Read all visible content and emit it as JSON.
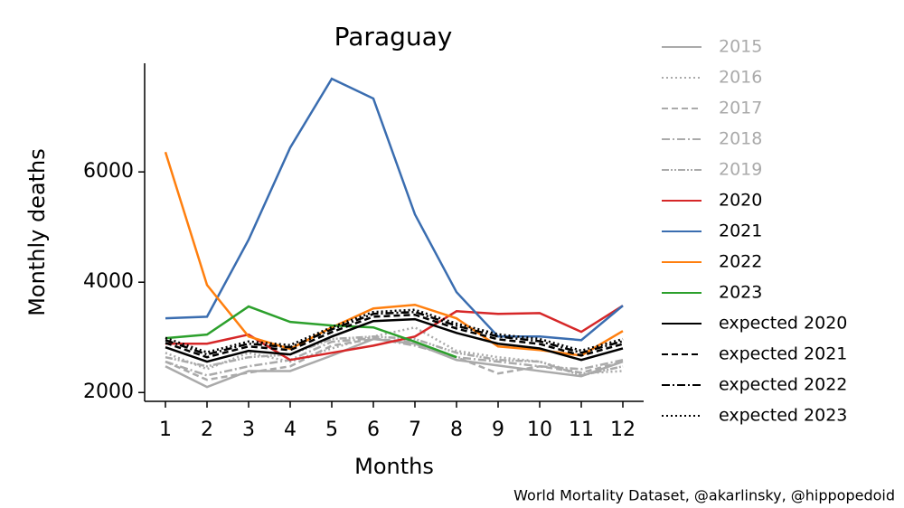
{
  "chart_data": {
    "type": "line",
    "title": "Paraguay",
    "xlabel": "Months",
    "ylabel": "Monthly deaths",
    "source": "World Mortality Dataset, @akarlinsky, @hippopedoid",
    "x": [
      1,
      2,
      3,
      4,
      5,
      6,
      7,
      8,
      9,
      10,
      11,
      12
    ],
    "xlim": [
      0.5,
      12.5
    ],
    "xticks": [
      1,
      2,
      3,
      4,
      5,
      6,
      7,
      8,
      9,
      10,
      11,
      12
    ],
    "ylim": [
      1840,
      7970
    ],
    "yticks": [
      2000,
      4000,
      6000
    ],
    "grid": false,
    "series": [
      {
        "name": "2015",
        "color": "#aaaaaa",
        "linestyle": "solid",
        "values": [
          2475,
          2100,
          2390,
          2390,
          2670,
          2970,
          2885,
          2590,
          2490,
          2390,
          2295,
          2560
        ]
      },
      {
        "name": "2016",
        "color": "#aaaaaa",
        "linestyle": "dotted",
        "values": [
          2720,
          2425,
          2720,
          2560,
          2800,
          3015,
          3180,
          2755,
          2640,
          2560,
          2345,
          2390
        ]
      },
      {
        "name": "2017",
        "color": "#aaaaaa",
        "linestyle": "dashed",
        "values": [
          2560,
          2230,
          2360,
          2475,
          2850,
          2970,
          2920,
          2640,
          2345,
          2475,
          2360,
          2560
        ]
      },
      {
        "name": "2018",
        "color": "#aaaaaa",
        "linestyle": "dashdot",
        "values": [
          2560,
          2310,
          2475,
          2590,
          2920,
          2985,
          2850,
          2640,
          2560,
          2475,
          2425,
          2590
        ]
      },
      {
        "name": "2019",
        "color": "#aaaaaa",
        "linestyle": "dashdotdot",
        "values": [
          2640,
          2475,
          2640,
          2690,
          2970,
          3015,
          2970,
          2720,
          2590,
          2560,
          2310,
          2475
        ]
      },
      {
        "name": "2020",
        "color": "#d62728",
        "linestyle": "solid",
        "values": [
          2885,
          2885,
          3050,
          2590,
          2720,
          2850,
          3015,
          3475,
          3425,
          3440,
          3100,
          3575
        ]
      },
      {
        "name": "2021",
        "color": "#3a6db0",
        "linestyle": "solid",
        "values": [
          3345,
          3375,
          4770,
          6440,
          7690,
          7330,
          5230,
          3820,
          3015,
          3015,
          2950,
          3575
        ]
      },
      {
        "name": "2022",
        "color": "#ff7f0e",
        "linestyle": "solid",
        "values": [
          6360,
          3950,
          3015,
          2790,
          3180,
          3525,
          3590,
          3345,
          2835,
          2770,
          2670,
          3115
        ]
      },
      {
        "name": "2023",
        "color": "#2ca02c",
        "linestyle": "solid",
        "values": [
          2985,
          3050,
          3560,
          3280,
          3215,
          3180,
          2920,
          2640,
          null,
          null,
          null,
          null
        ]
      },
      {
        "name": "expected 2020",
        "color": "#000000",
        "linestyle": "solid",
        "values": [
          2820,
          2560,
          2755,
          2690,
          3015,
          3295,
          3330,
          3080,
          2885,
          2800,
          2590,
          2800
        ]
      },
      {
        "name": "expected 2021",
        "color": "#000000",
        "linestyle": "dashed",
        "values": [
          2900,
          2640,
          2835,
          2770,
          3095,
          3375,
          3410,
          3160,
          2965,
          2880,
          2670,
          2880
        ]
      },
      {
        "name": "expected 2022",
        "color": "#000000",
        "linestyle": "dashdot",
        "values": [
          2950,
          2690,
          2885,
          2820,
          3145,
          3425,
          3460,
          3210,
          3015,
          2930,
          2720,
          2930
        ]
      },
      {
        "name": "expected 2023",
        "color": "#000000",
        "linestyle": "dotted",
        "values": [
          2990,
          2730,
          2925,
          2860,
          3185,
          3460,
          3500,
          3250,
          3055,
          2970,
          2760,
          2970
        ]
      }
    ]
  }
}
